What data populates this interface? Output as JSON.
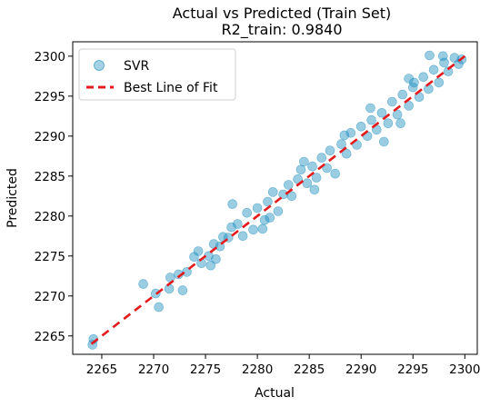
{
  "chart_data": {
    "type": "scatter",
    "title": "Actual vs Predicted (Train Set)",
    "subtitle": "R2_train: 0.9840",
    "xlabel": "Actual",
    "ylabel": "Predicted",
    "xlim": [
      2262.2,
      2301.2
    ],
    "ylim": [
      2262.7,
      2301.8
    ],
    "xticks": [
      2265,
      2270,
      2275,
      2280,
      2285,
      2290,
      2295,
      2300
    ],
    "yticks": [
      2265,
      2270,
      2275,
      2280,
      2285,
      2290,
      2295,
      2300
    ],
    "grid": false,
    "legend_position": "top-left",
    "series": [
      {
        "name": "SVR",
        "kind": "scatter",
        "color": "#1f8fbf",
        "points": [
          [
            2264.2,
            2264.6
          ],
          [
            2264.1,
            2263.9
          ],
          [
            2269.0,
            2271.5
          ],
          [
            2270.2,
            2270.3
          ],
          [
            2270.5,
            2268.6
          ],
          [
            2271.5,
            2270.9
          ],
          [
            2272.4,
            2272.7
          ],
          [
            2272.8,
            2270.7
          ],
          [
            2273.2,
            2273.0
          ],
          [
            2273.9,
            2274.9
          ],
          [
            2274.3,
            2275.6
          ],
          [
            2274.6,
            2274.1
          ],
          [
            2275.3,
            2275.0
          ],
          [
            2275.8,
            2276.5
          ],
          [
            2276.4,
            2276.2
          ],
          [
            2276.7,
            2277.4
          ],
          [
            2277.2,
            2277.3
          ],
          [
            2277.5,
            2278.6
          ],
          [
            2277.6,
            2281.5
          ],
          [
            2278.1,
            2279.0
          ],
          [
            2278.6,
            2277.5
          ],
          [
            2279.0,
            2280.4
          ],
          [
            2279.6,
            2278.3
          ],
          [
            2280.0,
            2281.0
          ],
          [
            2280.7,
            2279.5
          ],
          [
            2281.0,
            2281.8
          ],
          [
            2281.5,
            2283.0
          ],
          [
            2282.0,
            2280.6
          ],
          [
            2282.5,
            2282.7
          ],
          [
            2283.0,
            2283.9
          ],
          [
            2283.3,
            2282.5
          ],
          [
            2283.9,
            2284.6
          ],
          [
            2284.2,
            2285.8
          ],
          [
            2284.8,
            2284.1
          ],
          [
            2285.3,
            2286.2
          ],
          [
            2285.7,
            2284.8
          ],
          [
            2286.2,
            2287.3
          ],
          [
            2286.7,
            2286.0
          ],
          [
            2287.0,
            2288.2
          ],
          [
            2287.5,
            2285.3
          ],
          [
            2288.1,
            2289.0
          ],
          [
            2288.6,
            2287.8
          ],
          [
            2289.0,
            2290.4
          ],
          [
            2289.6,
            2288.9
          ],
          [
            2290.0,
            2291.2
          ],
          [
            2290.6,
            2290.0
          ],
          [
            2291.0,
            2292.0
          ],
          [
            2291.5,
            2290.8
          ],
          [
            2292.0,
            2292.9
          ],
          [
            2292.6,
            2291.6
          ],
          [
            2293.0,
            2294.3
          ],
          [
            2293.5,
            2292.7
          ],
          [
            2294.0,
            2295.2
          ],
          [
            2294.6,
            2293.8
          ],
          [
            2295.0,
            2296.1
          ],
          [
            2295.6,
            2294.9
          ],
          [
            2296.0,
            2297.4
          ],
          [
            2296.5,
            2295.9
          ],
          [
            2297.0,
            2298.3
          ],
          [
            2297.5,
            2296.7
          ],
          [
            2298.0,
            2299.2
          ],
          [
            2298.4,
            2298.1
          ],
          [
            2299.0,
            2299.8
          ],
          [
            2299.4,
            2299.0
          ],
          [
            2296.6,
            2300.1
          ],
          [
            2297.9,
            2300.0
          ],
          [
            2295.1,
            2296.7
          ],
          [
            2299.7,
            2299.6
          ],
          [
            2294.6,
            2297.2
          ],
          [
            2292.2,
            2289.3
          ],
          [
            2285.5,
            2283.3
          ],
          [
            2280.5,
            2278.4
          ],
          [
            2275.5,
            2273.8
          ],
          [
            2271.6,
            2272.3
          ],
          [
            2276.0,
            2274.6
          ],
          [
            2281.2,
            2279.8
          ],
          [
            2284.5,
            2286.8
          ],
          [
            2288.4,
            2290.1
          ],
          [
            2290.9,
            2293.5
          ],
          [
            2293.8,
            2291.6
          ]
        ]
      },
      {
        "name": "Best Line of Fit",
        "kind": "line",
        "color": "#e41a1c",
        "dash": "dashed",
        "x": [
          2264.0,
          2300.0
        ],
        "y": [
          2264.0,
          2300.0
        ]
      }
    ]
  }
}
